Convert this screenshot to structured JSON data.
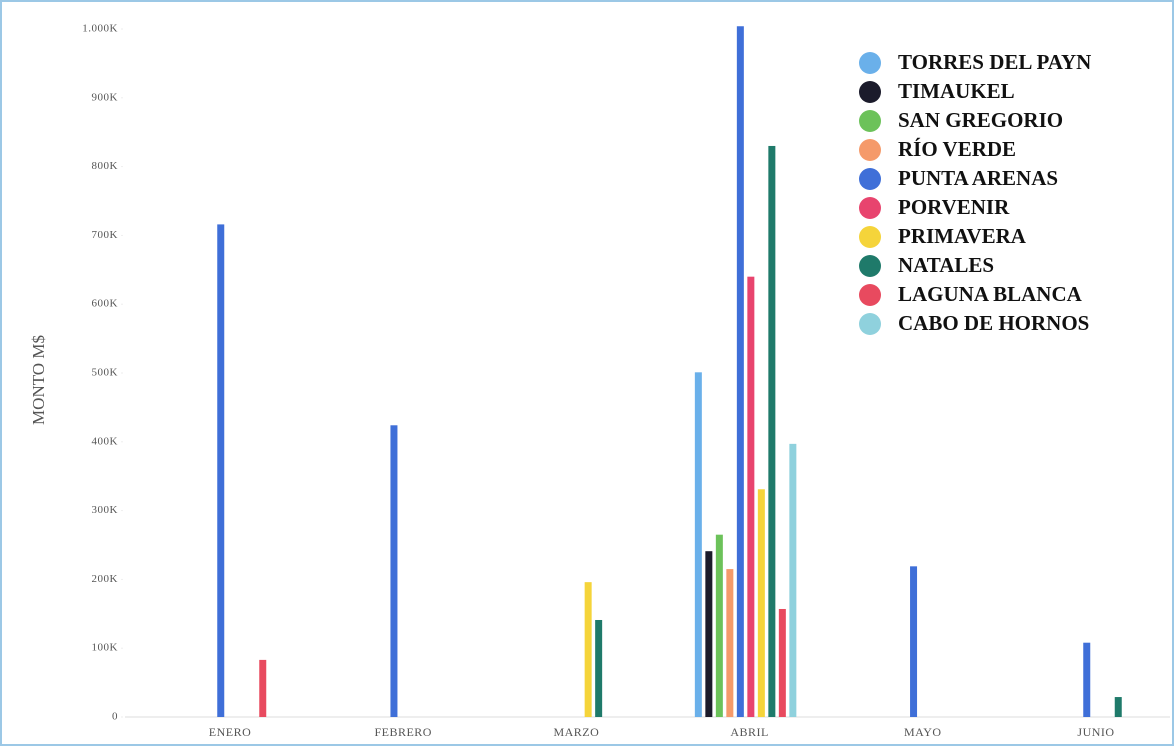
{
  "chart_data": {
    "type": "bar",
    "y_label": "MONTO M$",
    "categories": [
      "ENERO",
      "FEBRERO",
      "MARZO",
      "ABRIL",
      "MAYO",
      "JUNIO"
    ],
    "ylim": [
      0,
      1000000
    ],
    "yticks": [
      0,
      {
        "value": 100000,
        "label": "100K"
      },
      {
        "value": 200000,
        "label": "200K"
      },
      {
        "value": 300000,
        "label": "300K"
      },
      {
        "value": 400000,
        "label": "400K"
      },
      {
        "value": 500000,
        "label": "500K"
      },
      {
        "value": 600000,
        "label": "600K"
      },
      {
        "value": 700000,
        "label": "700K"
      },
      {
        "value": 800000,
        "label": "800K"
      },
      {
        "value": 900000,
        "label": "900K"
      },
      {
        "value": 1000000,
        "label": "1.000K"
      }
    ],
    "series": [
      {
        "name": "TORRES DEL PAYN",
        "color": "#6ab0ea",
        "values": [
          null,
          null,
          null,
          501000,
          null,
          null
        ]
      },
      {
        "name": "TIMAUKEL",
        "color": "#1b1b2b",
        "values": [
          null,
          null,
          null,
          241000,
          null,
          null
        ]
      },
      {
        "name": "SAN GREGORIO",
        "color": "#6cc25a",
        "values": [
          null,
          null,
          null,
          265000,
          null,
          null
        ]
      },
      {
        "name": "RÍO VERDE",
        "color": "#f59a6a",
        "values": [
          null,
          null,
          null,
          215000,
          null,
          null
        ]
      },
      {
        "name": "PUNTA ARENAS",
        "color": "#3f6fd8",
        "values": [
          716000,
          424000,
          null,
          1004000,
          219000,
          108000
        ]
      },
      {
        "name": "PORVENIR",
        "color": "#e8446e",
        "values": [
          null,
          null,
          null,
          640000,
          null,
          null
        ]
      },
      {
        "name": "PRIMAVERA",
        "color": "#f5d43a",
        "values": [
          null,
          null,
          196000,
          331000,
          null,
          null
        ]
      },
      {
        "name": "NATALES",
        "color": "#1f7a6a",
        "values": [
          null,
          null,
          141000,
          830000,
          null,
          29000
        ]
      },
      {
        "name": "LAGUNA BLANCA",
        "color": "#e84a5f",
        "values": [
          83000,
          null,
          null,
          157000,
          null,
          null
        ]
      },
      {
        "name": "CABO DE HORNOS",
        "color": "#8fd1dd",
        "values": [
          null,
          null,
          null,
          397000,
          null,
          null
        ]
      }
    ]
  }
}
